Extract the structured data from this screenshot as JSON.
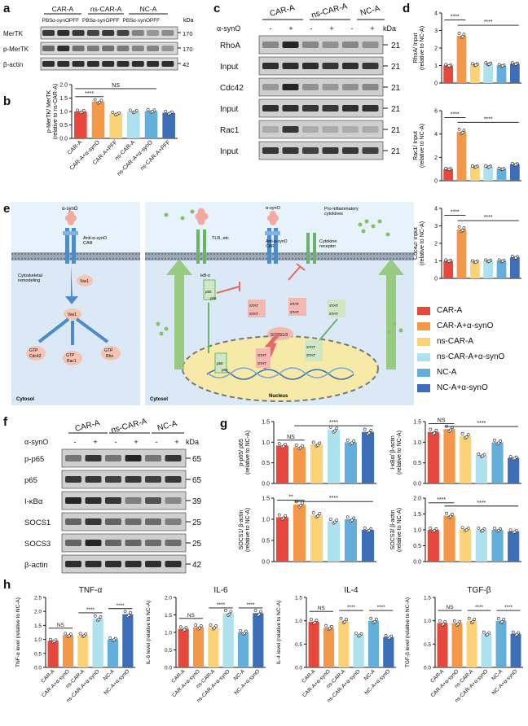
{
  "colors": {
    "car_a": "#e8473c",
    "car_a_syno": "#f39749",
    "ns_car_a": "#fbd376",
    "ns_car_a_syno": "#aee1ee",
    "nc_a": "#63aedb",
    "nc_a_syno": "#3e6eb7",
    "band": "#1c1c1c",
    "cytosol": "#dbe9f6",
    "nucleus": "#f7e9a8",
    "arrow_green": "#8cc66a"
  },
  "panel_labels": {
    "a": "a",
    "b": "b",
    "c": "c",
    "d": "d",
    "e": "e",
    "f": "f",
    "g": "g",
    "h": "h"
  },
  "common": {
    "kda": "kDa",
    "syno": "α-synO",
    "minus": "-",
    "plus": "+",
    "ns": "NS",
    "sig4": "****",
    "sig2": "**"
  },
  "panel_a": {
    "groups": [
      "CAR-A",
      "ns-CAR-A",
      "NC-A"
    ],
    "lane_labels": [
      "PBS",
      "α-synO",
      "PFF",
      "PBS",
      "α-synO",
      "PFF",
      "PBS",
      "α-synO",
      "PFF"
    ],
    "rows": [
      {
        "name": "MerTK",
        "kda": "170"
      },
      {
        "name": "p-MerTK",
        "kda": "170"
      },
      {
        "name": "β-actin",
        "kda": "42"
      }
    ]
  },
  "panel_b": {
    "ylabel": "p-MerTK/ MerTK\n(relative to ns-CAR-A)",
    "categories": [
      "CAR-A",
      "CAR-A+α-synO",
      "CAR-A+PFF",
      "ns-CAR-A",
      "ns-CAR-A+α-synO",
      "ns-CAR-A+PFF"
    ],
    "yticks": [
      "0.0",
      "0.5",
      "1.0",
      "1.5",
      "2.0"
    ]
  },
  "panel_c": {
    "groups": [
      "CAR-A",
      "ns-CAR-A",
      "NC-A"
    ],
    "treat": [
      "-",
      "+",
      "-",
      "+",
      "-",
      "+"
    ],
    "rows": [
      {
        "name": "RhoA",
        "kda": "21"
      },
      {
        "name": "Input",
        "kda": "21"
      },
      {
        "name": "Cdc42",
        "kda": "21"
      },
      {
        "name": "Input",
        "kda": "21"
      },
      {
        "name": "Rac1",
        "kda": "21"
      },
      {
        "name": "Input",
        "kda": "21"
      }
    ]
  },
  "panel_e": {
    "left": {
      "ligand": "α-synO",
      "receptor": "Anti-α-synO\nCAR",
      "remodel": "Cytoskeletal\nremodeling",
      "vav1": "Vav1",
      "vav1_p": "Vav1",
      "p": "P",
      "gtp": "GTP",
      "targets": [
        "Cdc42",
        "Rac1",
        "Rho"
      ],
      "cytosol": "Cytosol"
    },
    "right": {
      "ligand": "α-synO",
      "receptor": "Anti-α-synO\nCAR",
      "tlr": "TLR, etc",
      "cytokines": "Pro-inflammatory\ncytokines",
      "cyt_receptor": "Cytokine\nreceptor",
      "ikb": "IκB-α",
      "p50": "p50",
      "p65": "p65",
      "stat": "STAT",
      "socs": "SOCS1/3",
      "p": "P",
      "nucleus": "Nucleus",
      "cytosol": "Cytosol"
    }
  },
  "legend": [
    {
      "label": "CAR-A",
      "color": "#e8473c"
    },
    {
      "label": "CAR-A+α-synO",
      "color": "#f39749"
    },
    {
      "label": "ns-CAR-A",
      "color": "#fbd376"
    },
    {
      "label": "ns-CAR-A+α-synO",
      "color": "#aee1ee"
    },
    {
      "label": "NC-A",
      "color": "#63aedb"
    },
    {
      "label": "NC-A+α-synO",
      "color": "#3e6eb7"
    }
  ],
  "panel_f": {
    "groups": [
      "CAR-A",
      "ns-CAR-A",
      "NC-A"
    ],
    "treat": [
      "-",
      "+",
      "-",
      "+",
      "-",
      "+"
    ],
    "rows": [
      {
        "name": "p-p65",
        "kda": "65"
      },
      {
        "name": "p65",
        "kda": "65"
      },
      {
        "name": "I-κBα",
        "kda": "39"
      },
      {
        "name": "SOCS1",
        "kda": "25"
      },
      {
        "name": "SOCS3",
        "kda": "25"
      },
      {
        "name": "β-actin",
        "kda": "42"
      }
    ]
  },
  "panel_h_categories": [
    "CAR-A",
    "CAR-A+α-synO",
    "ns-CAR-A",
    "ns-CAR-A+α-synO",
    "NC-A",
    "NC-A+α-synO"
  ],
  "chart_data": [
    {
      "id": "b",
      "type": "bar",
      "title": "",
      "ylabel": "p-MerTK/ MerTK (relative to ns-CAR-A)",
      "categories": [
        "CAR-A",
        "CAR-A+α-synO",
        "CAR-A+PFF",
        "ns-CAR-A",
        "ns-CAR-A+α-synO",
        "ns-CAR-A+PFF"
      ],
      "values": [
        1.0,
        1.37,
        0.92,
        1.0,
        1.02,
        0.95
      ],
      "ylim": [
        0,
        2
      ],
      "yticks": [
        0,
        0.5,
        1.0,
        1.5,
        2.0
      ]
    },
    {
      "id": "d1",
      "type": "bar",
      "title": "",
      "ylabel": "RhoA/ Input (relative to NC-A)",
      "categories": [
        "CAR-A",
        "CAR-A+α-synO",
        "ns-CAR-A",
        "ns-CAR-A+α-synO",
        "NC-A",
        "NC-A+α-synO"
      ],
      "values": [
        1.0,
        2.7,
        1.05,
        1.1,
        1.0,
        1.1
      ],
      "ylim": [
        0,
        4
      ],
      "yticks": [
        0,
        1,
        2,
        3,
        4
      ]
    },
    {
      "id": "d2",
      "type": "bar",
      "title": "",
      "ylabel": "Rac1/ Input (relative to NC-A)",
      "categories": [
        "CAR-A",
        "CAR-A+α-synO",
        "ns-CAR-A",
        "ns-CAR-A+α-synO",
        "NC-A",
        "NC-A+α-synO"
      ],
      "values": [
        1.0,
        4.2,
        1.2,
        1.2,
        1.0,
        1.4
      ],
      "ylim": [
        0,
        6
      ],
      "yticks": [
        0,
        2,
        4,
        6
      ]
    },
    {
      "id": "d3",
      "type": "bar",
      "title": "",
      "ylabel": "Cdc42/ Input (relative to NC-A)",
      "categories": [
        "CAR-A",
        "CAR-A+α-synO",
        "ns-CAR-A",
        "ns-CAR-A+α-synO",
        "NC-A",
        "NC-A+α-synO"
      ],
      "values": [
        1.0,
        2.8,
        0.95,
        1.0,
        1.0,
        1.2
      ],
      "ylim": [
        0,
        4
      ],
      "yticks": [
        0,
        1,
        2,
        3,
        4
      ]
    },
    {
      "id": "g1",
      "type": "bar",
      "title": "",
      "ylabel": "p-p65/ p65 (relative to NC-A)",
      "categories": [
        "CAR-A",
        "CAR-A+α-synO",
        "ns-CAR-A",
        "ns-CAR-A+α-synO",
        "NC-A",
        "NC-A+α-synO"
      ],
      "values": [
        0.92,
        0.88,
        0.95,
        1.3,
        1.0,
        1.25
      ],
      "ylim": [
        0,
        1.5
      ],
      "yticks": [
        0.0,
        0.5,
        1.0,
        1.5
      ]
    },
    {
      "id": "g2",
      "type": "bar",
      "title": "",
      "ylabel": "I-κBα/ β-actin (relative to NC-A)",
      "categories": [
        "CAR-A",
        "CAR-A+α-synO",
        "ns-CAR-A",
        "ns-CAR-A+α-synO",
        "NC-A",
        "NC-A+α-synO"
      ],
      "values": [
        1.25,
        1.32,
        1.15,
        0.68,
        1.0,
        0.62
      ],
      "ylim": [
        0,
        1.5
      ],
      "yticks": [
        0.0,
        0.5,
        1.0,
        1.5
      ]
    },
    {
      "id": "g3",
      "type": "bar",
      "title": "",
      "ylabel": "SOCS1/ β-actin (relative to NC-A)",
      "categories": [
        "CAR-A",
        "CAR-A+α-synO",
        "ns-CAR-A",
        "ns-CAR-A+α-synO",
        "NC-A",
        "NC-A+α-synO"
      ],
      "values": [
        1.05,
        1.35,
        1.1,
        0.95,
        1.0,
        0.75
      ],
      "ylim": [
        0,
        1.5
      ],
      "yticks": [
        0.0,
        0.5,
        1.0,
        1.5
      ]
    },
    {
      "id": "g4",
      "type": "bar",
      "title": "",
      "ylabel": "SOCS3/ β-actin (relative to NC-A)",
      "categories": [
        "CAR-A",
        "CAR-A+α-synO",
        "ns-CAR-A",
        "ns-CAR-A+α-synO",
        "NC-A",
        "NC-A+α-synO"
      ],
      "values": [
        1.0,
        1.45,
        1.02,
        1.0,
        1.0,
        0.95
      ],
      "ylim": [
        0,
        2
      ],
      "yticks": [
        0.0,
        0.5,
        1.0,
        1.5,
        2.0
      ]
    },
    {
      "id": "h1",
      "type": "bar",
      "title": "TNF-α",
      "ylabel": "TNF-α level (relative to NC-A)",
      "categories": [
        "CAR-A",
        "CAR-A+α-synO",
        "ns-CAR-A",
        "ns-CAR-A+α-synO",
        "NC-A",
        "NC-A+α-synO"
      ],
      "values": [
        0.95,
        1.15,
        1.15,
        1.75,
        1.0,
        1.9
      ],
      "ylim": [
        0,
        2.5
      ],
      "yticks": [
        0.0,
        0.5,
        1.0,
        1.5,
        2.0,
        2.5
      ]
    },
    {
      "id": "h2",
      "type": "bar",
      "title": "IL-6",
      "ylabel": "IL-6 level (relative to NC-A)",
      "categories": [
        "CAR-A",
        "CAR-A+α-synO",
        "ns-CAR-A",
        "ns-CAR-A+α-synO",
        "NC-A",
        "NC-A+α-synO"
      ],
      "values": [
        1.1,
        1.15,
        1.15,
        1.55,
        1.0,
        1.55
      ],
      "ylim": [
        0,
        2.0
      ],
      "yticks": [
        0.0,
        0.5,
        1.0,
        1.5,
        2.0
      ]
    },
    {
      "id": "h3",
      "type": "bar",
      "title": "IL-4",
      "ylabel": "IL-4 level (relative to NC-A)",
      "categories": [
        "CAR-A",
        "CAR-A+α-synO",
        "ns-CAR-A",
        "ns-CAR-A+α-synO",
        "NC-A",
        "NC-A+α-synO"
      ],
      "values": [
        0.98,
        0.85,
        1.0,
        0.7,
        1.0,
        0.65
      ],
      "ylim": [
        0,
        1.5
      ],
      "yticks": [
        0.0,
        0.5,
        1.0,
        1.5
      ]
    },
    {
      "id": "h4",
      "type": "bar",
      "title": "TGF-β",
      "ylabel": "TGF-β level (relative to NC-A)",
      "categories": [
        "CAR-A",
        "CAR-A+α-synO",
        "ns-CAR-A",
        "ns-CAR-A+α-synO",
        "NC-A",
        "NC-A+α-synO"
      ],
      "values": [
        0.95,
        0.95,
        1.0,
        0.72,
        1.0,
        0.72
      ],
      "ylim": [
        0,
        1.5
      ],
      "yticks": [
        0.0,
        0.5,
        1.0,
        1.5
      ]
    }
  ]
}
